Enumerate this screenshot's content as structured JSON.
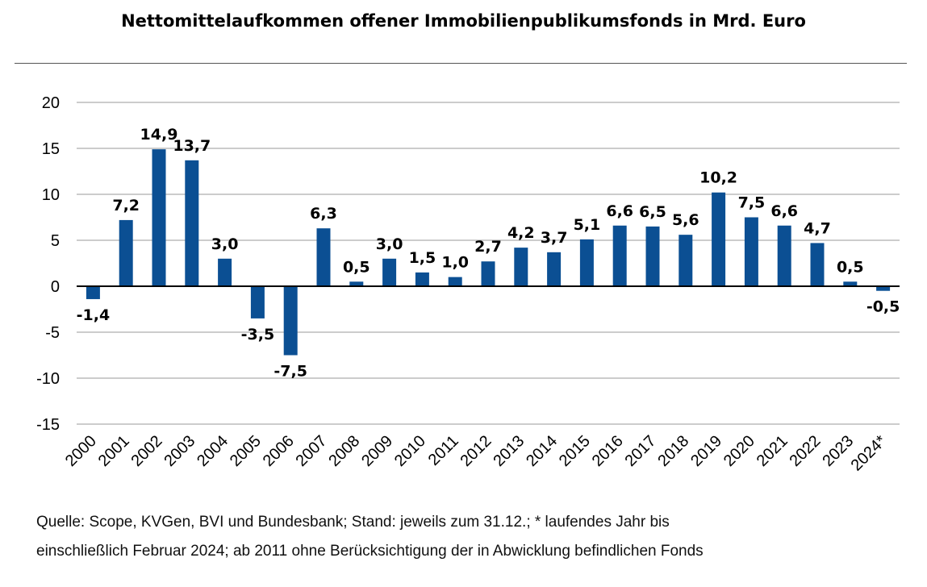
{
  "chart_data": {
    "type": "bar",
    "title": "Nettomittelaufkommen offener Immobilienpublikumsfonds in Mrd. Euro",
    "categories": [
      "2000",
      "2001",
      "2002",
      "2003",
      "2004",
      "2005",
      "2006",
      "2007",
      "2008",
      "2009",
      "2010",
      "2011",
      "2012",
      "2013",
      "2014",
      "2015",
      "2016",
      "2017",
      "2018",
      "2019",
      "2020",
      "2021",
      "2022",
      "2023",
      "2024*"
    ],
    "values": [
      -1.4,
      7.2,
      14.9,
      13.7,
      3.0,
      -3.5,
      -7.5,
      6.3,
      0.5,
      3.0,
      1.5,
      1.0,
      2.7,
      4.2,
      3.7,
      5.1,
      6.6,
      6.5,
      5.6,
      10.2,
      7.5,
      6.6,
      4.7,
      0.5,
      -0.5
    ],
    "data_labels": [
      "-1,4",
      "7,2",
      "14,9",
      "13,7",
      "3,0",
      "-3,5",
      "-7,5",
      "6,3",
      "0,5",
      "3,0",
      "1,5",
      "1,0",
      "2,7",
      "4,2",
      "3,7",
      "5,1",
      "6,6",
      "6,5",
      "5,6",
      "10,2",
      "7,5",
      "6,6",
      "4,7",
      "0,5",
      "-0,5"
    ],
    "ylim": [
      -15,
      20
    ],
    "yticks": [
      "-15",
      "-10",
      "-5",
      "0",
      "5",
      "10",
      "15",
      "20"
    ],
    "grid": true,
    "bar_color": "#0b4f93",
    "xlabel": "",
    "ylabel": ""
  },
  "footnote": {
    "line1": "Quelle: Scope, KVGen, BVI und Bundesbank; Stand: jeweils zum 31.12.; * laufendes Jahr bis",
    "line2": "einschließlich Februar 2024; ab 2011 ohne Berücksichtigung der in Abwicklung befindlichen Fonds"
  }
}
